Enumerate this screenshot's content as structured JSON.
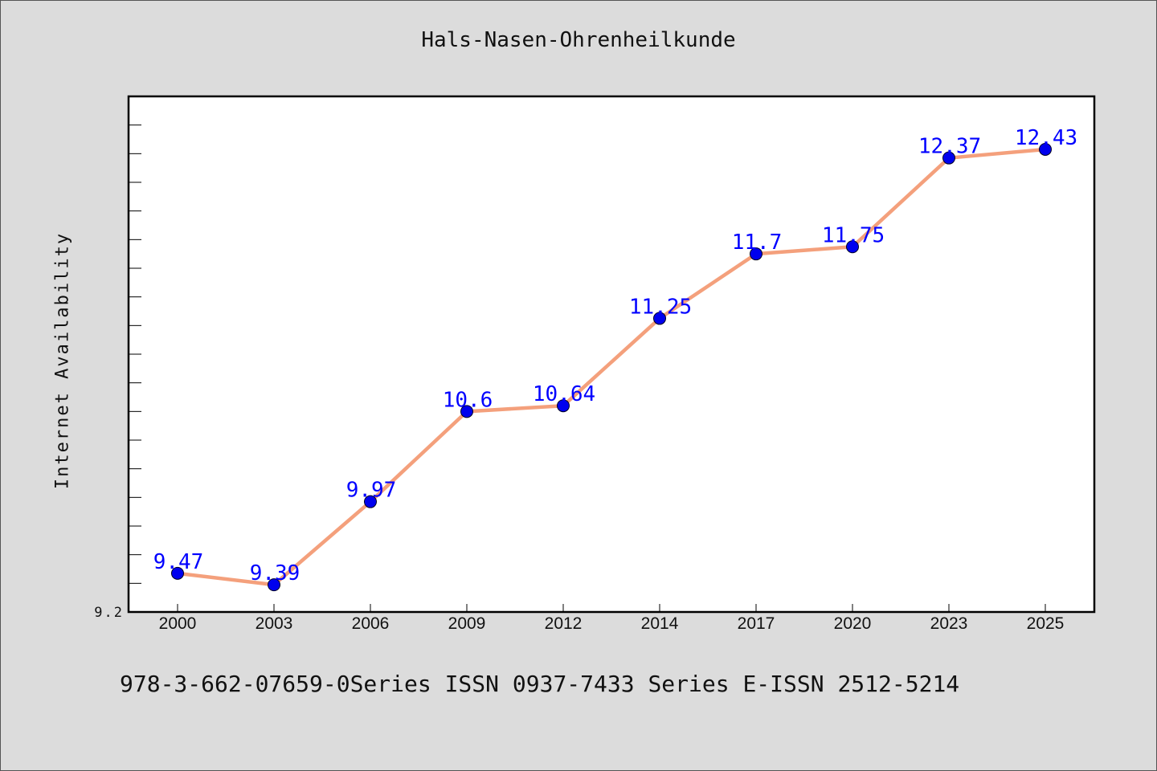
{
  "chart_data": {
    "type": "line",
    "title": "Hals-Nasen-Ohrenheilkunde",
    "xlabel": "",
    "ylabel": "Internet Availability",
    "categories": [
      "2000",
      "2003",
      "2006",
      "2009",
      "2012",
      "2014",
      "2017",
      "2020",
      "2023",
      "2025"
    ],
    "series": [
      {
        "values": [
          9.47,
          9.39,
          9.97,
          10.6,
          10.64,
          11.25,
          11.7,
          11.75,
          12.37,
          12.43
        ],
        "labels": [
          "9.47",
          "9.39",
          "9.97",
          "10.6",
          "10.64",
          "11.25",
          "11.7",
          "11.75",
          "12.37",
          "12.43"
        ]
      }
    ],
    "ylim": [
      9.2,
      12.8
    ],
    "y_tick_labels": [
      "9.2"
    ],
    "grid": false,
    "legend": "none"
  },
  "footer": {
    "text": "978-3-662-07659-0Series ISSN 0937-7433 Series E-ISSN 2512-5214"
  },
  "colors": {
    "line": "#f4a07c",
    "marker": "#0000ee",
    "data_label": "#0000ff",
    "plot_background": "#ffffff",
    "figure_background": "#dcdcdc"
  }
}
